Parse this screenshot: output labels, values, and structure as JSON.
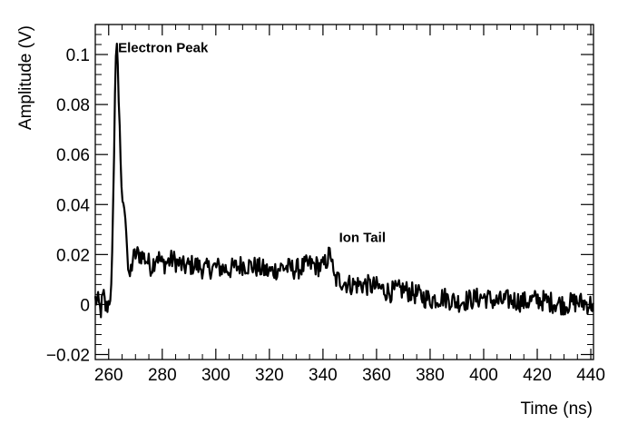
{
  "chart_data": {
    "type": "line",
    "title": "",
    "xlabel": "Time (ns)",
    "ylabel": "Amplitude (V)",
    "xlim": [
      255,
      441
    ],
    "ylim": [
      -0.022,
      0.112
    ],
    "x_ticks": [
      260,
      280,
      300,
      320,
      340,
      360,
      380,
      400,
      420,
      440
    ],
    "x_tick_labels": [
      "260",
      "280",
      "300",
      "320",
      "340",
      "360",
      "380",
      "400",
      "420",
      "440"
    ],
    "y_ticks": [
      -0.02,
      0,
      0.02,
      0.04,
      0.06,
      0.08,
      0.1
    ],
    "y_tick_labels": [
      "−0.02",
      "0",
      "0.02",
      "0.04",
      "0.06",
      "0.08",
      "0.1"
    ],
    "grid": false,
    "legend": "none",
    "line_color": "#000000",
    "series": [
      {
        "x": [
          255,
          256,
          257,
          258,
          259,
          260,
          261,
          261.5,
          262,
          262.5,
          263,
          263.3,
          263.6,
          264,
          264.5,
          265,
          265.5,
          266,
          266.5,
          267,
          267.5,
          268,
          269,
          270,
          272,
          274,
          276,
          278,
          280,
          284,
          288,
          292,
          296,
          300,
          305,
          310,
          315,
          320,
          325,
          330,
          335,
          340,
          342,
          343,
          344,
          346,
          348,
          350,
          355,
          360,
          365,
          370,
          375,
          380,
          385,
          390,
          395,
          400,
          405,
          410,
          415,
          420,
          425,
          430,
          435,
          441
        ],
        "y": [
          0.002,
          0.001,
          -0.003,
          0.004,
          -0.002,
          0.001,
          0.006,
          0.03,
          0.06,
          0.095,
          0.105,
          0.102,
          0.085,
          0.075,
          0.055,
          0.042,
          0.04,
          0.038,
          0.03,
          0.02,
          0.008,
          0.012,
          0.018,
          0.02,
          0.02,
          0.018,
          0.015,
          0.02,
          0.016,
          0.018,
          0.015,
          0.016,
          0.014,
          0.015,
          0.014,
          0.016,
          0.015,
          0.013,
          0.015,
          0.014,
          0.016,
          0.015,
          0.019,
          0.021,
          0.01,
          0.01,
          0.009,
          0.008,
          0.008,
          0.007,
          0.005,
          0.006,
          0.004,
          0.002,
          0.003,
          0.001,
          0.002,
          0.003,
          0.001,
          0.002,
          0.001,
          0.002,
          0.001,
          0.0,
          0.001,
          0.0
        ]
      }
    ],
    "annotations": [
      {
        "text": "Electron Peak",
        "x": 263.5,
        "y": 0.101
      },
      {
        "text": "Ion Tail",
        "x": 346,
        "y": 0.025
      }
    ]
  }
}
